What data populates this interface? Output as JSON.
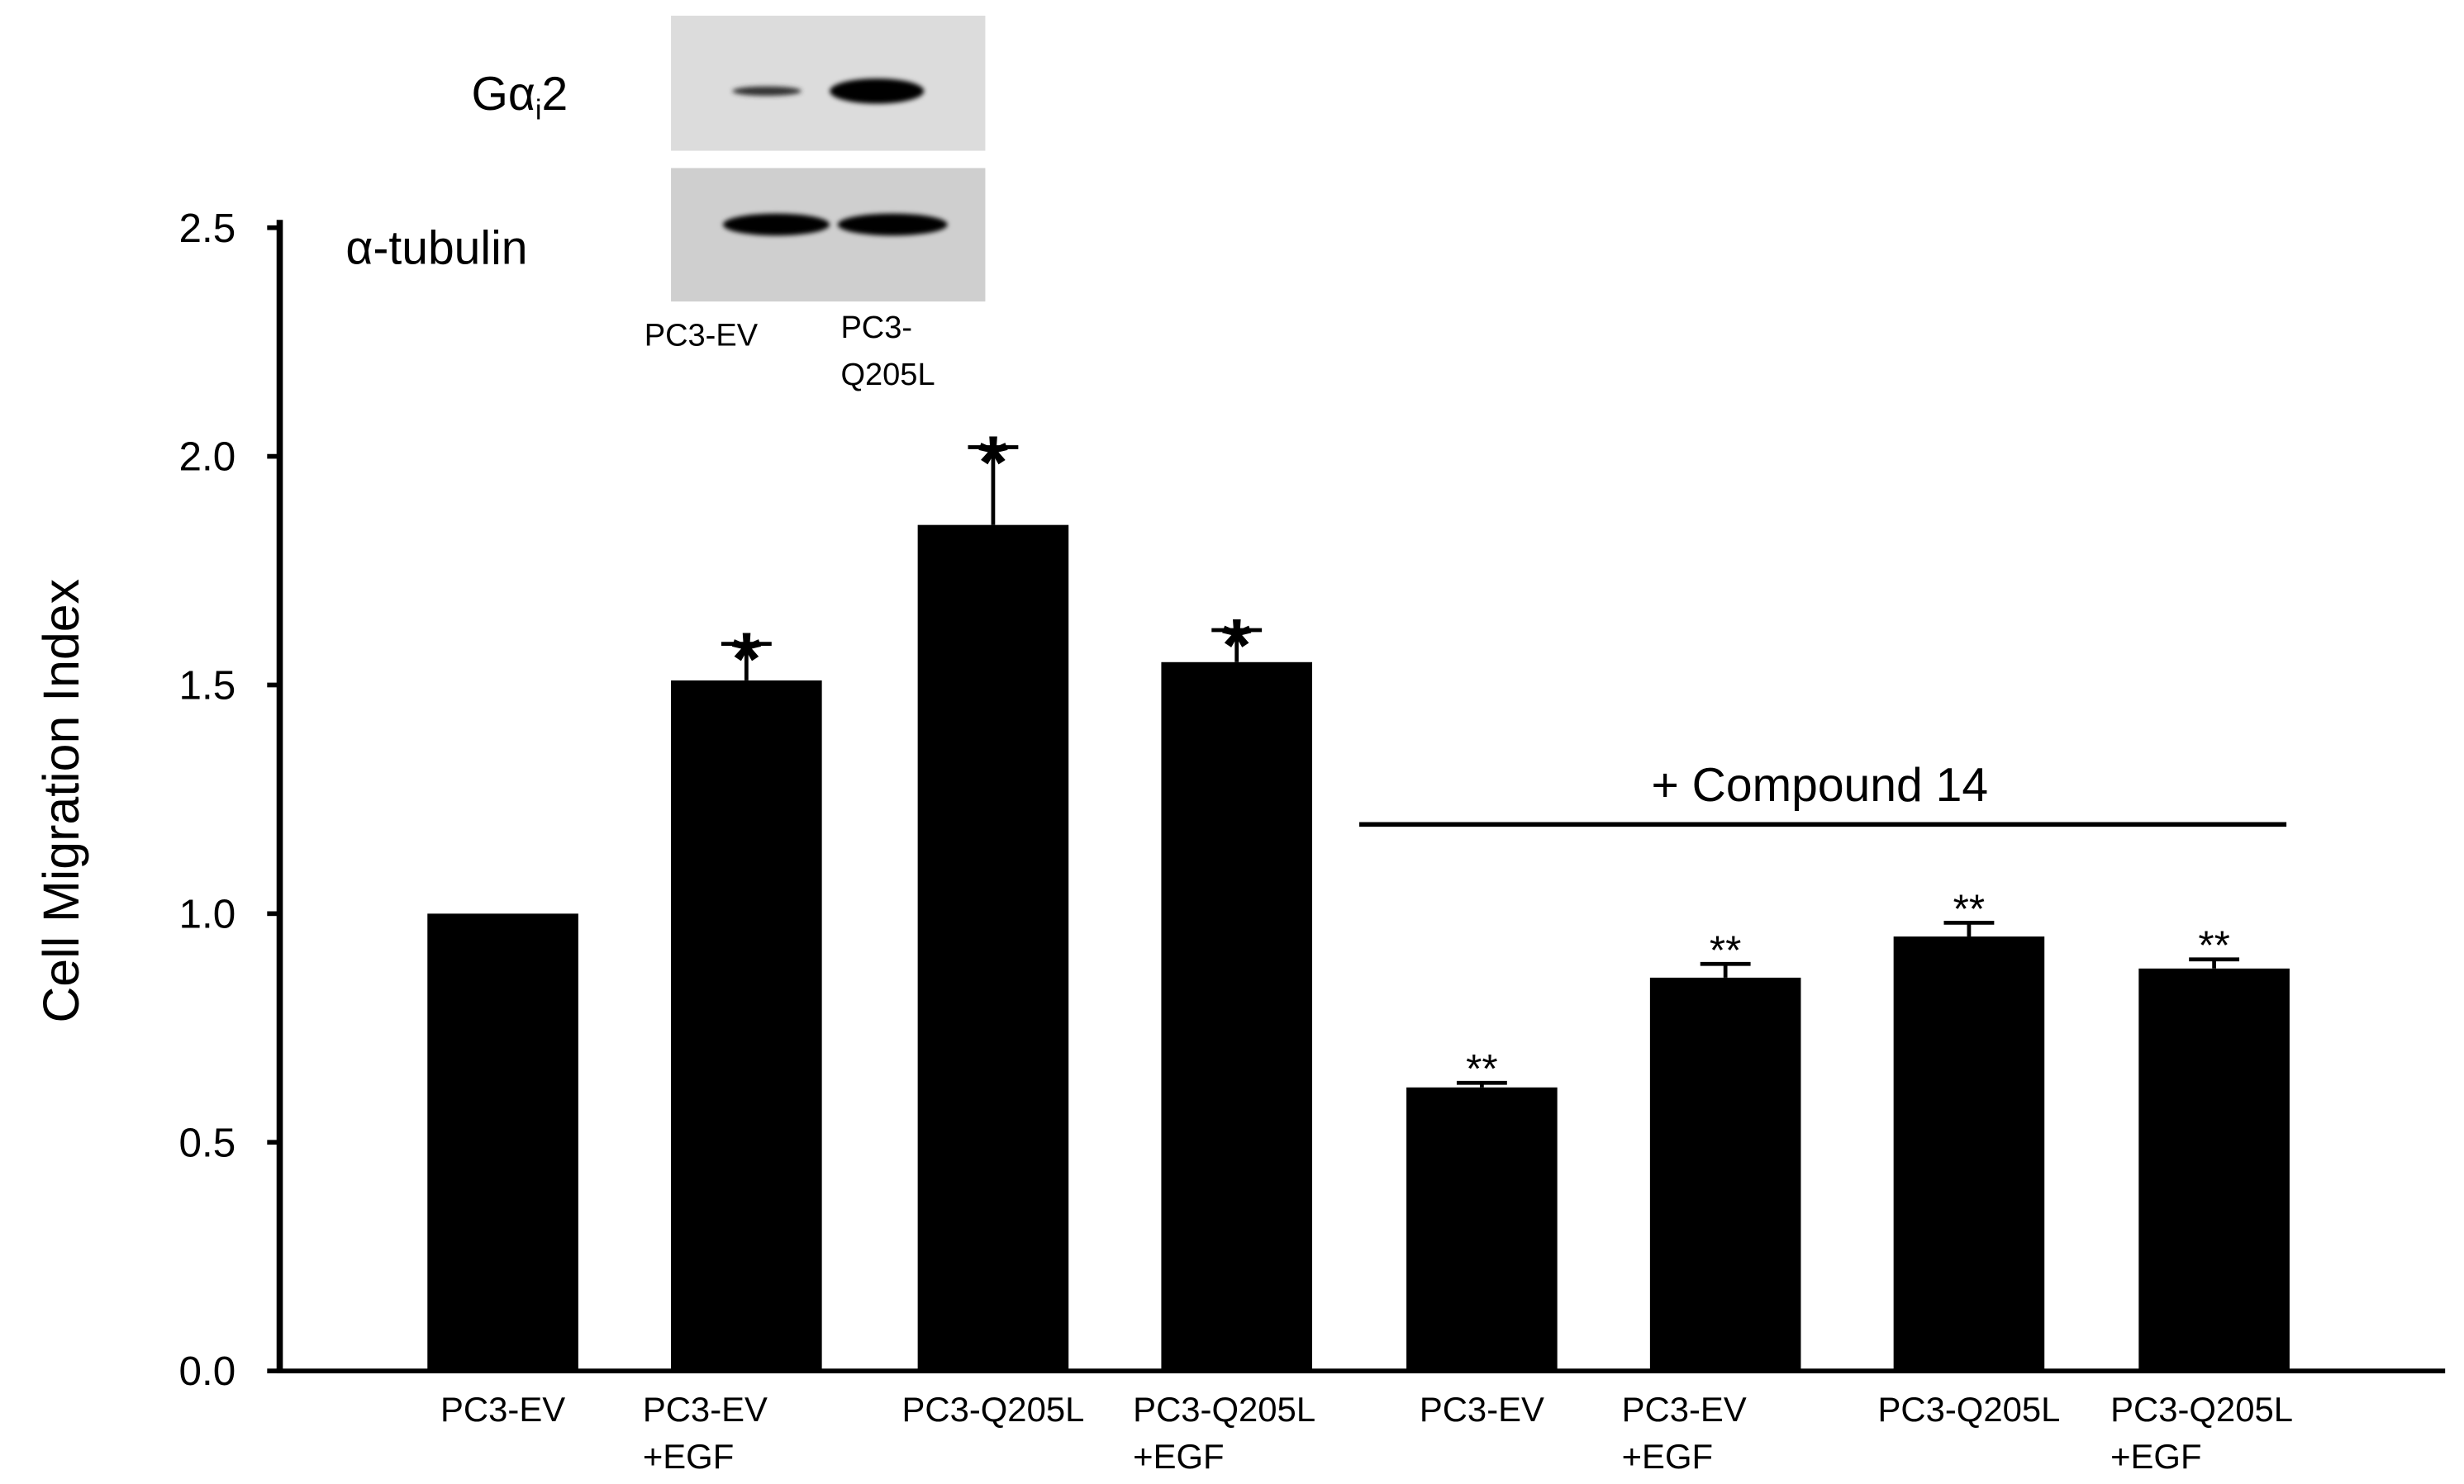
{
  "chart_data": {
    "type": "bar",
    "ylabel": "Cell Migration Index",
    "categories": [
      [
        "PC3-EV"
      ],
      [
        "PC3-EV",
        "+EGF"
      ],
      [
        "PC3-Q205L"
      ],
      [
        "PC3-Q205L",
        "+EGF"
      ],
      [
        "PC3-EV"
      ],
      [
        "PC3-EV",
        "+EGF"
      ],
      [
        "PC3-Q205L"
      ],
      [
        "PC3-Q205L",
        "+EGF"
      ]
    ],
    "values": [
      1.0,
      1.51,
      1.85,
      1.55,
      0.62,
      0.86,
      0.95,
      0.88
    ],
    "errors": [
      null,
      0.08,
      0.17,
      0.07,
      0.01,
      0.03,
      0.03,
      0.02
    ],
    "annotations": [
      null,
      "*",
      "*",
      "*",
      "**",
      "**",
      "**",
      "**"
    ],
    "color": "#000000",
    "ylim": [
      0,
      2.5
    ],
    "yticks": [
      {
        "value": 0,
        "label": "0.0"
      },
      0.5,
      {
        "value": 1,
        "label": "1.0"
      },
      1.5,
      {
        "value": 2,
        "label": "2.0"
      },
      2.5
    ],
    "bracket_label": "+ Compound 14",
    "blot": {
      "rows": [
        {
          "main": "Gα",
          "sub": "i",
          "tail": "2"
        },
        {
          "main": "α-tubulin"
        }
      ],
      "lanes": [
        [
          "PC3-EV"
        ],
        [
          "PC3-",
          "Q205L"
        ]
      ]
    }
  }
}
